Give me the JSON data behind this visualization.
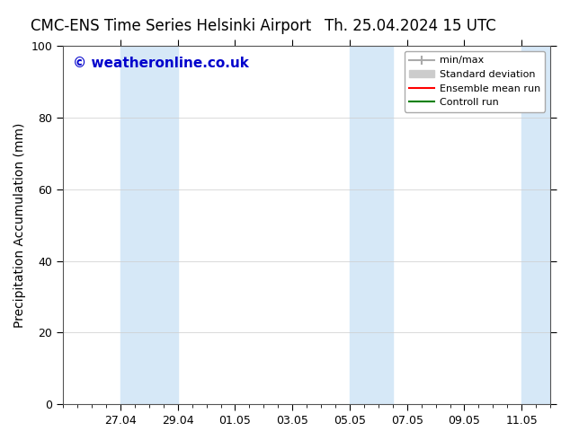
{
  "title_left": "CMC-ENS Time Series Helsinki Airport",
  "title_right": "Th. 25.04.2024 15 UTC",
  "ylabel": "Precipitation Accumulation (mm)",
  "watermark": "© weatheronline.co.uk",
  "watermark_color": "#0000cc",
  "ylim": [
    0,
    100
  ],
  "yticks": [
    0,
    20,
    40,
    60,
    80,
    100
  ],
  "background_color": "#ffffff",
  "plot_bg_color": "#ffffff",
  "shade_color": "#d6e8f7",
  "xtick_labels": [
    "27.04",
    "29.04",
    "01.05",
    "03.05",
    "05.05",
    "07.05",
    "09.05",
    "11.05"
  ],
  "legend_items": [
    {
      "label": "min/max",
      "color": "#aaaaaa",
      "lw": 1.5
    },
    {
      "label": "Standard deviation",
      "color": "#cccccc",
      "lw": 5
    },
    {
      "label": "Ensemble mean run",
      "color": "#ff0000",
      "lw": 1.5
    },
    {
      "label": "Controll run",
      "color": "#008000",
      "lw": 1.5
    }
  ],
  "font_color": "#000000",
  "title_fontsize": 12,
  "label_fontsize": 10,
  "tick_fontsize": 9,
  "watermark_fontsize": 11
}
